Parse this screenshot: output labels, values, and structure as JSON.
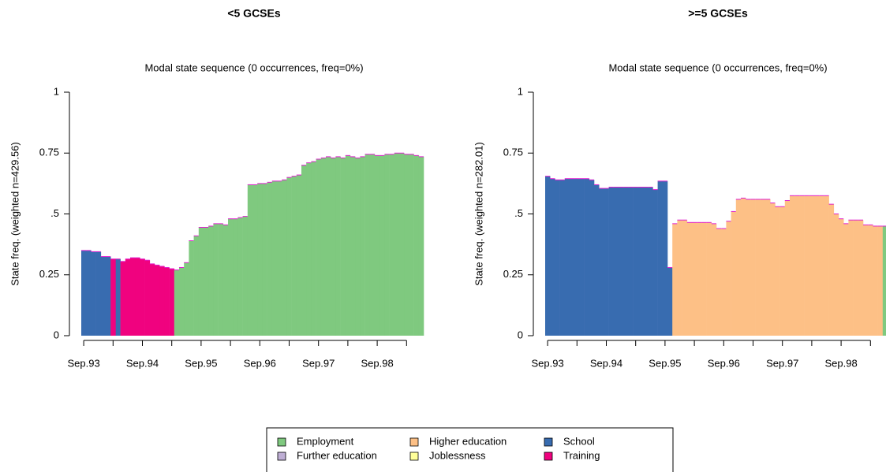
{
  "chart_data": [
    {
      "type": "bar",
      "title": "<5 GCSEs",
      "subtitle": "Modal state sequence (0 occurrences, freq=0%)",
      "y_label": "State freq. (weighted n=429.56)",
      "categories": [
        "Sep.93",
        null,
        null,
        null,
        null,
        null,
        null,
        null,
        null,
        null,
        null,
        null,
        "Sep.94",
        null,
        null,
        null,
        null,
        null,
        null,
        null,
        null,
        null,
        null,
        null,
        "Sep.95",
        null,
        null,
        null,
        null,
        null,
        null,
        null,
        null,
        null,
        null,
        null,
        "Sep.96",
        null,
        null,
        null,
        null,
        null,
        null,
        null,
        null,
        null,
        null,
        null,
        "Sep.97",
        null,
        null,
        null,
        null,
        null,
        null,
        null,
        null,
        null,
        null,
        null,
        "Sep.98",
        null,
        null,
        null,
        null,
        null,
        null,
        null,
        null,
        null
      ],
      "ylim": [
        0,
        1
      ],
      "yticks": [
        0,
        0.25,
        {
          "value": 0.5,
          "label": ".5"
        },
        0.75,
        1
      ],
      "series": [
        {
          "name": "School",
          "values": [
            0.35,
            0.35,
            0.345,
            0.345,
            0.325,
            0.325,
            null,
            0.315,
            null,
            null,
            null,
            null,
            null,
            null,
            null,
            null,
            null,
            null,
            null,
            null,
            null,
            null,
            null,
            null,
            null,
            null,
            null,
            null,
            null,
            null,
            null,
            null,
            null,
            null,
            null,
            null,
            null,
            null,
            null,
            null,
            null,
            null,
            null,
            null,
            null,
            null,
            null,
            null,
            null,
            null,
            null,
            null,
            null,
            null,
            null,
            null,
            null,
            null,
            null,
            null,
            null,
            null,
            null,
            null,
            null,
            null,
            null,
            null,
            null,
            null
          ]
        },
        {
          "name": "Training",
          "values": [
            null,
            null,
            null,
            null,
            null,
            null,
            0.315,
            null,
            0.305,
            0.315,
            0.32,
            0.32,
            0.315,
            0.31,
            0.295,
            0.29,
            0.285,
            0.28,
            0.275,
            null,
            null,
            null,
            null,
            null,
            null,
            null,
            null,
            null,
            null,
            null,
            null,
            null,
            null,
            null,
            null,
            null,
            null,
            null,
            null,
            null,
            null,
            null,
            null,
            null,
            null,
            null,
            null,
            null,
            null,
            null,
            null,
            null,
            null,
            null,
            null,
            null,
            null,
            null,
            null,
            null,
            null,
            null,
            null,
            null,
            null,
            null,
            null,
            null,
            null,
            null
          ]
        },
        {
          "name": "Employment",
          "values": [
            null,
            null,
            null,
            null,
            null,
            null,
            null,
            null,
            null,
            null,
            null,
            null,
            null,
            null,
            null,
            null,
            null,
            null,
            null,
            0.27,
            0.28,
            0.3,
            0.39,
            0.41,
            0.445,
            0.445,
            0.45,
            0.46,
            0.46,
            0.455,
            0.48,
            0.48,
            0.485,
            0.49,
            0.62,
            0.62,
            0.625,
            0.625,
            0.63,
            0.635,
            0.635,
            0.64,
            0.65,
            0.655,
            0.66,
            0.7,
            0.71,
            0.715,
            0.725,
            0.73,
            0.735,
            0.73,
            0.735,
            0.73,
            0.74,
            0.735,
            0.73,
            0.735,
            0.745,
            0.745,
            0.74,
            0.74,
            0.745,
            0.745,
            0.75,
            0.75,
            0.745,
            0.745,
            0.74,
            0.735
          ]
        }
      ]
    },
    {
      "type": "bar",
      "title": ">=5 GCSEs",
      "subtitle": "Modal state sequence (0 occurrences, freq=0%)",
      "y_label": "State freq. (weighted n=282.01)",
      "categories": [
        "Sep.93",
        null,
        null,
        null,
        null,
        null,
        null,
        null,
        null,
        null,
        null,
        null,
        "Sep.94",
        null,
        null,
        null,
        null,
        null,
        null,
        null,
        null,
        null,
        null,
        null,
        "Sep.95",
        null,
        null,
        null,
        null,
        null,
        null,
        null,
        null,
        null,
        null,
        null,
        "Sep.96",
        null,
        null,
        null,
        null,
        null,
        null,
        null,
        null,
        null,
        null,
        null,
        "Sep.97",
        null,
        null,
        null,
        null,
        null,
        null,
        null,
        null,
        null,
        null,
        null,
        "Sep.98",
        null,
        null,
        null,
        null,
        null,
        null,
        null,
        null,
        null
      ],
      "ylim": [
        0,
        1
      ],
      "yticks": [
        0,
        0.25,
        {
          "value": 0.5,
          "label": ".5"
        },
        0.75,
        1
      ],
      "series": [
        {
          "name": "School",
          "values": [
            0.655,
            0.645,
            0.64,
            0.64,
            0.645,
            0.645,
            0.645,
            0.645,
            0.645,
            0.64,
            0.62,
            0.605,
            0.605,
            0.61,
            0.61,
            0.61,
            0.61,
            0.61,
            0.61,
            0.61,
            0.61,
            0.61,
            0.6,
            0.635,
            0.635,
            0.28,
            null,
            null,
            null,
            null,
            null,
            null,
            null,
            null,
            null,
            null,
            null,
            null,
            null,
            null,
            null,
            null,
            null,
            null,
            null,
            null,
            null,
            null,
            null,
            null,
            null,
            null,
            null,
            null,
            null,
            null,
            null,
            null,
            null,
            null,
            null,
            null,
            null,
            null,
            null,
            null,
            null,
            null,
            null,
            null
          ]
        },
        {
          "name": "Higher education",
          "values": [
            null,
            null,
            null,
            null,
            null,
            null,
            null,
            null,
            null,
            null,
            null,
            null,
            null,
            null,
            null,
            null,
            null,
            null,
            null,
            null,
            null,
            null,
            null,
            null,
            null,
            null,
            0.46,
            0.475,
            0.475,
            0.465,
            0.465,
            0.465,
            0.465,
            0.465,
            0.46,
            0.44,
            0.44,
            0.47,
            0.51,
            0.56,
            0.565,
            0.56,
            0.56,
            0.56,
            0.56,
            0.56,
            0.545,
            0.53,
            0.53,
            0.555,
            0.575,
            0.575,
            0.575,
            0.575,
            0.575,
            0.575,
            0.575,
            0.575,
            0.54,
            0.5,
            0.48,
            0.46,
            0.475,
            0.475,
            0.475,
            0.455,
            0.455,
            0.45,
            0.45,
            null
          ]
        },
        {
          "name": "Employment",
          "values": [
            null,
            null,
            null,
            null,
            null,
            null,
            null,
            null,
            null,
            null,
            null,
            null,
            null,
            null,
            null,
            null,
            null,
            null,
            null,
            null,
            null,
            null,
            null,
            null,
            null,
            null,
            null,
            null,
            null,
            null,
            null,
            null,
            null,
            null,
            null,
            null,
            null,
            null,
            null,
            null,
            null,
            null,
            null,
            null,
            null,
            null,
            null,
            null,
            null,
            null,
            null,
            null,
            null,
            null,
            null,
            null,
            null,
            null,
            null,
            null,
            null,
            null,
            null,
            null,
            null,
            null,
            null,
            null,
            null,
            0.45
          ]
        }
      ]
    }
  ],
  "legend": [
    {
      "name": "Employment",
      "color": "#7fc97f"
    },
    {
      "name": "Further education",
      "color": "#beaed4"
    },
    {
      "name": "Higher education",
      "color": "#fdc086"
    },
    {
      "name": "Joblessness",
      "color": "#ffff99"
    },
    {
      "name": "School",
      "color": "#386cb0"
    },
    {
      "name": "Training",
      "color": "#f0027f"
    }
  ]
}
